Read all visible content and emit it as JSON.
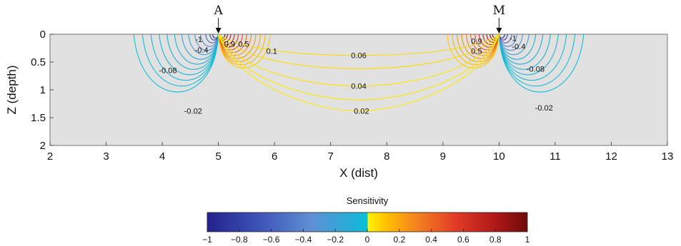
{
  "chart_data": {
    "type": "contour",
    "xlabel": "X (dist)",
    "ylabel": "Z (depth)",
    "xlim": [
      2,
      13
    ],
    "ylim": [
      0,
      2
    ],
    "y_inverted": true,
    "x_ticks": [
      2,
      3,
      4,
      5,
      6,
      7,
      8,
      9,
      10,
      11,
      12,
      13
    ],
    "y_ticks": [
      0,
      0.5,
      1,
      1.5,
      2
    ],
    "y_tick_labels": [
      "0",
      "0.5",
      "1",
      "1.5",
      "2"
    ],
    "background_color": "#e1e1e1",
    "electrodes": [
      {
        "label": "A",
        "x": 5
      },
      {
        "label": "M",
        "x": 10
      }
    ],
    "contour_labels": [
      {
        "text": "-0.02",
        "x": 4.55,
        "z": 1.38
      },
      {
        "text": "-0.08",
        "x": 4.1,
        "z": 0.65
      },
      {
        "text": "-0.4",
        "x": 4.7,
        "z": 0.28
      },
      {
        "text": "-1",
        "x": 4.65,
        "z": 0.09
      },
      {
        "text": "0.9",
        "x": 5.2,
        "z": 0.17
      },
      {
        "text": "0.5",
        "x": 5.45,
        "z": 0.17
      },
      {
        "text": "0.1",
        "x": 5.95,
        "z": 0.3
      },
      {
        "text": "0.06",
        "x": 7.5,
        "z": 0.38
      },
      {
        "text": "0.04",
        "x": 7.5,
        "z": 0.93
      },
      {
        "text": "0.02",
        "x": 7.55,
        "z": 1.38
      },
      {
        "text": "0.9",
        "x": 9.6,
        "z": 0.12
      },
      {
        "text": "0.5",
        "x": 9.6,
        "z": 0.3
      },
      {
        "text": "-1",
        "x": 10.25,
        "z": 0.07
      },
      {
        "text": "-0.4",
        "x": 10.35,
        "z": 0.22
      },
      {
        "text": "-0.08",
        "x": 10.65,
        "z": 0.62
      },
      {
        "text": "-0.02",
        "x": 10.8,
        "z": 1.32
      }
    ],
    "colorbar": {
      "title": "Sensitivity",
      "min": -1,
      "max": 1,
      "ticks": [
        -1,
        -0.8,
        -0.6,
        -0.4,
        -0.2,
        0,
        0.2,
        0.4,
        0.6,
        0.8,
        1
      ],
      "tick_labels": [
        "−1",
        "−0.8",
        "−0.6",
        "−0.4",
        "−0.2",
        "0",
        "0.2",
        "0.4",
        "0.6",
        "0.8",
        "1"
      ],
      "stops": [
        {
          "value": -1,
          "color": "#23238c"
        },
        {
          "value": -0.7,
          "color": "#3b4fb4"
        },
        {
          "value": -0.35,
          "color": "#5f8fd4"
        },
        {
          "value": -0.08,
          "color": "#1fb0d8"
        },
        {
          "value": 0,
          "color": "#09c3d8"
        },
        {
          "value": 0.005,
          "color": "#fff200"
        },
        {
          "value": 0.12,
          "color": "#ffc000"
        },
        {
          "value": 0.3,
          "color": "#f5841f"
        },
        {
          "value": 0.55,
          "color": "#e23c28"
        },
        {
          "value": 0.8,
          "color": "#b01818"
        },
        {
          "value": 1,
          "color": "#6e0b0b"
        }
      ]
    }
  }
}
